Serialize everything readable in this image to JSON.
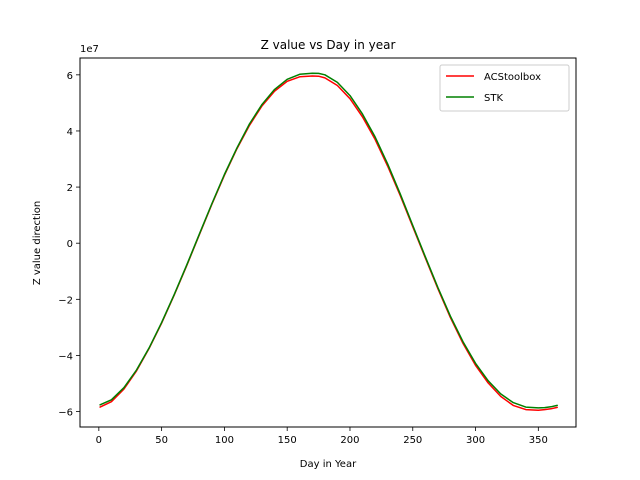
{
  "chart_data": {
    "type": "line",
    "title": "Z value vs Day in year",
    "xlabel": "Day in Year",
    "ylabel": "Z value direction",
    "y_offset_label": "1e7",
    "xlim": [
      -15,
      380
    ],
    "ylim": [
      -6.55,
      6.6
    ],
    "y_scale_note": "y values in units of 1e7",
    "x_ticks": [
      0,
      50,
      100,
      150,
      200,
      250,
      300,
      350
    ],
    "x_tick_labels": [
      "0",
      "50",
      "100",
      "150",
      "200",
      "250",
      "300",
      "350"
    ],
    "y_ticks": [
      -6,
      -4,
      -2,
      0,
      2,
      4,
      6
    ],
    "y_tick_labels": [
      "−6",
      "−4",
      "−2",
      "0",
      "2",
      "4",
      "6"
    ],
    "legend_position": "upper right",
    "grid": false,
    "series": [
      {
        "name": "ACStoolbox",
        "color": "#ff0000",
        "x": [
          1,
          10,
          20,
          30,
          40,
          50,
          60,
          70,
          80,
          90,
          100,
          110,
          120,
          130,
          140,
          150,
          160,
          170,
          175,
          180,
          190,
          200,
          210,
          220,
          230,
          240,
          250,
          260,
          270,
          280,
          290,
          300,
          310,
          320,
          330,
          340,
          350,
          355,
          360,
          365
        ],
        "y": [
          -5.84,
          -5.65,
          -5.2,
          -4.55,
          -3.75,
          -2.85,
          -1.85,
          -0.8,
          0.3,
          1.38,
          2.42,
          3.37,
          4.2,
          4.9,
          5.42,
          5.77,
          5.93,
          5.96,
          5.95,
          5.89,
          5.62,
          5.15,
          4.5,
          3.7,
          2.75,
          1.7,
          0.58,
          -0.52,
          -1.62,
          -2.65,
          -3.57,
          -4.35,
          -4.98,
          -5.46,
          -5.78,
          -5.93,
          -5.95,
          -5.93,
          -5.9,
          -5.85
        ]
      },
      {
        "name": "STK",
        "color": "#008000",
        "x": [
          1,
          10,
          20,
          30,
          40,
          50,
          60,
          70,
          80,
          90,
          100,
          110,
          120,
          130,
          140,
          150,
          160,
          170,
          175,
          180,
          190,
          200,
          210,
          220,
          230,
          240,
          250,
          260,
          270,
          280,
          290,
          300,
          310,
          320,
          330,
          340,
          350,
          355,
          360,
          365
        ],
        "y": [
          -5.76,
          -5.58,
          -5.15,
          -4.52,
          -3.73,
          -2.83,
          -1.83,
          -0.78,
          0.32,
          1.4,
          2.45,
          3.4,
          4.25,
          4.95,
          5.48,
          5.84,
          6.02,
          6.06,
          6.05,
          6.0,
          5.73,
          5.26,
          4.6,
          3.79,
          2.83,
          1.76,
          0.63,
          -0.48,
          -1.58,
          -2.6,
          -3.51,
          -4.28,
          -4.9,
          -5.37,
          -5.68,
          -5.84,
          -5.87,
          -5.86,
          -5.83,
          -5.78
        ]
      }
    ]
  }
}
